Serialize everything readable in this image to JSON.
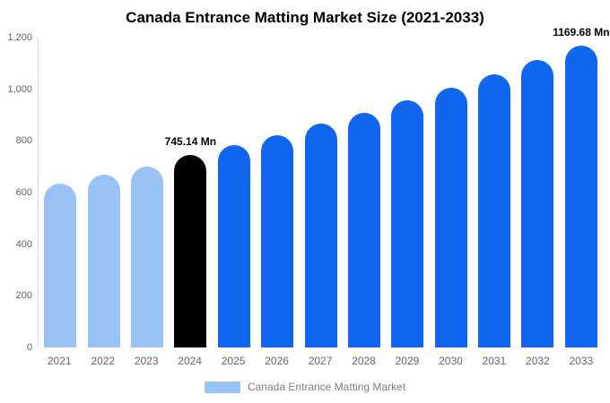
{
  "title": "Canada Entrance Matting Market Size (2021-2033)",
  "legend": {
    "label": "Canada Entrance Matting Market",
    "swatch_color": "#99C2F5"
  },
  "colors": {
    "light_blue": "#99C2F5",
    "blue": "#1166F0",
    "highlight_black": "#000000",
    "axis_text": "#666666"
  },
  "chart_data": {
    "type": "bar",
    "title": "Canada Entrance Matting Market Size (2021-2033)",
    "categories": [
      "2021",
      "2022",
      "2023",
      "2024",
      "2025",
      "2026",
      "2027",
      "2028",
      "2029",
      "2030",
      "2031",
      "2032",
      "2033"
    ],
    "values": [
      635,
      668,
      702,
      745.14,
      783,
      823,
      866,
      910,
      957,
      1006,
      1058,
      1112,
      1169.68
    ],
    "bar_colors": [
      "#99C2F5",
      "#99C2F5",
      "#99C2F5",
      "#000000",
      "#1166F0",
      "#1166F0",
      "#1166F0",
      "#1166F0",
      "#1166F0",
      "#1166F0",
      "#1166F0",
      "#1166F0",
      "#1166F0"
    ],
    "value_labels": [
      null,
      null,
      null,
      "745.14 Mn",
      null,
      null,
      null,
      null,
      null,
      null,
      null,
      null,
      "1169.68 Mn"
    ],
    "xlabel": "",
    "ylabel": "",
    "ylim": [
      0,
      1200
    ],
    "yticks": [
      0,
      200,
      400,
      600,
      800,
      1000,
      1200
    ],
    "ytick_labels": [
      "0",
      "200",
      "400",
      "600",
      "800",
      "1,000",
      "1,200"
    ],
    "grid": false,
    "legend_position": "bottom",
    "legend_entries": [
      "Canada Entrance Matting Market"
    ]
  }
}
